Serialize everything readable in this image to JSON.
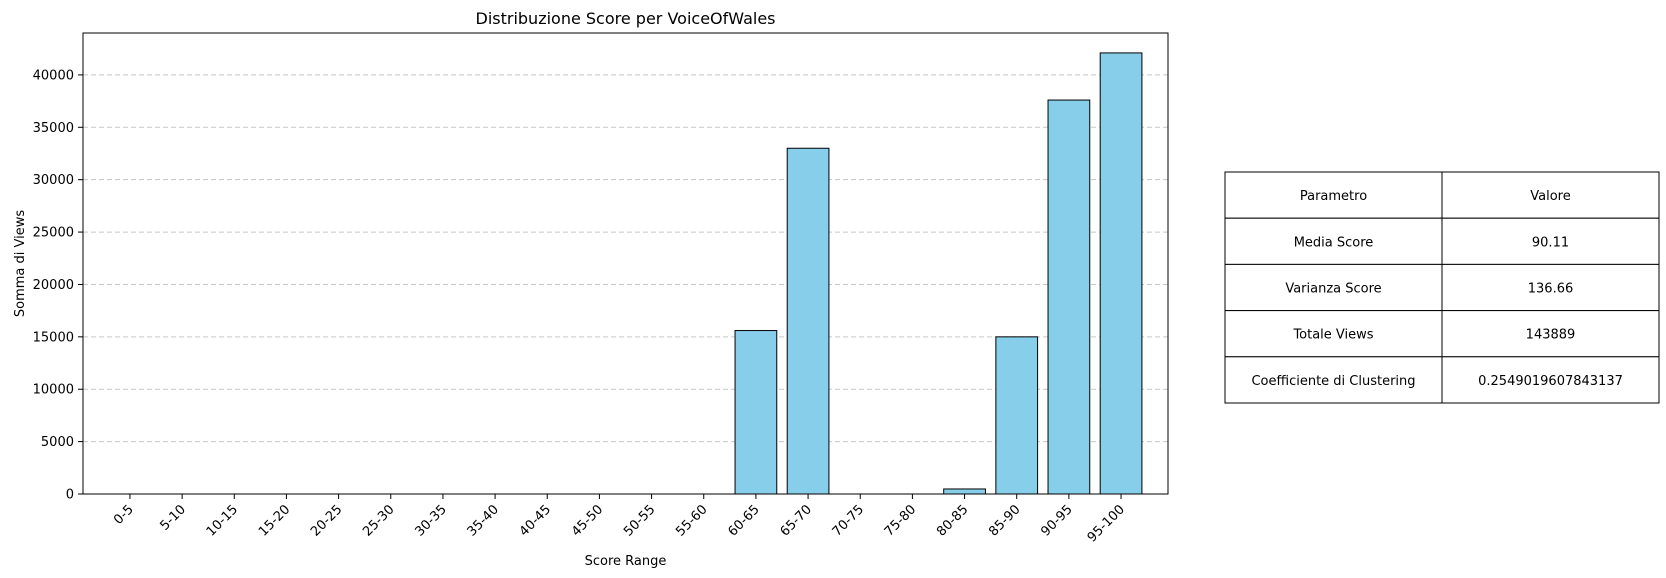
{
  "chart_data": {
    "type": "bar",
    "title": "Distribuzione Score per VoiceOfWales",
    "xlabel": "Score Range",
    "ylabel": "Somma di Views",
    "categories": [
      "0-5",
      "5-10",
      "10-15",
      "15-20",
      "20-25",
      "25-30",
      "30-35",
      "35-40",
      "40-45",
      "45-50",
      "50-55",
      "55-60",
      "60-65",
      "65-70",
      "70-75",
      "75-80",
      "80-85",
      "85-90",
      "90-95",
      "95-100"
    ],
    "values": [
      0,
      0,
      0,
      0,
      0,
      0,
      0,
      0,
      0,
      0,
      0,
      0,
      15600,
      33000,
      0,
      0,
      480,
      15000,
      37600,
      42100
    ],
    "ylim": [
      0,
      44000
    ],
    "yticks": [
      0,
      5000,
      10000,
      15000,
      20000,
      25000,
      30000,
      35000,
      40000
    ],
    "grid": "y-dashed",
    "bar_color": "#87CEEB",
    "edge_color": "#000000"
  },
  "table": {
    "header": [
      "Parametro",
      "Valore"
    ],
    "rows": [
      [
        "Media Score",
        "90.11"
      ],
      [
        "Varianza Score",
        "136.66"
      ],
      [
        "Totale Views",
        "143889"
      ],
      [
        "Coefficiente di Clustering",
        "0.2549019607843137"
      ]
    ]
  }
}
